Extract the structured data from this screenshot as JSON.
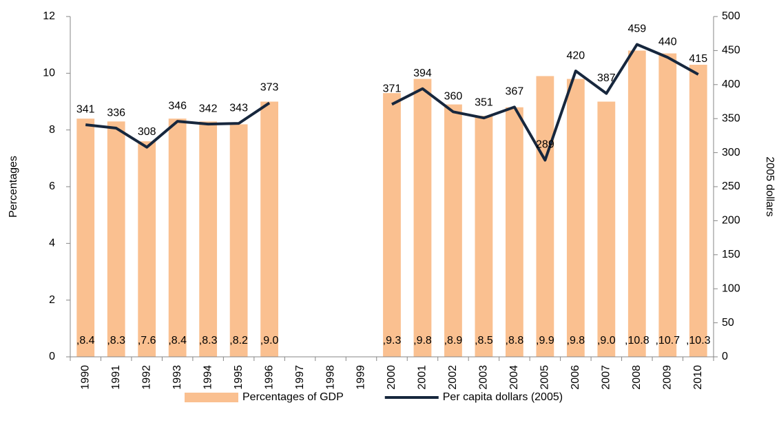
{
  "chart_data": {
    "type": "bar-line",
    "categories": [
      "1990",
      "1991",
      "1992",
      "1993",
      "1994",
      "1995",
      "1996",
      "1997",
      "1998",
      "1999",
      "2000",
      "2001",
      "2002",
      "2003",
      "2004",
      "2005",
      "2006",
      "2007",
      "2008",
      "2009",
      "2010"
    ],
    "series": [
      {
        "name": "Percentages of GDP",
        "type": "bar",
        "color": "#fac090",
        "values": [
          8.4,
          8.3,
          7.6,
          8.4,
          8.3,
          8.2,
          9.0,
          null,
          null,
          null,
          9.3,
          9.8,
          8.9,
          8.5,
          8.8,
          9.9,
          9.8,
          9.0,
          10.8,
          10.7,
          10.3
        ],
        "value_labels": [
          ",8.4",
          ",8.3",
          ",7.6",
          ",8.4",
          ",8.3",
          ",8.2",
          ",9.0",
          null,
          null,
          null,
          ",9.3",
          ",9.8",
          ",8.9",
          ",8.5",
          ",8.8",
          ",9.9",
          ",9.8",
          ",9.0",
          ",10.8",
          ",10.7",
          ",10.3"
        ]
      },
      {
        "name": "Per capita dollars (2005)",
        "type": "line",
        "axis": "y2",
        "color": "#17273d",
        "values": [
          341,
          336,
          308,
          346,
          342,
          343,
          373,
          null,
          null,
          null,
          371,
          394,
          360,
          351,
          367,
          289,
          420,
          387,
          459,
          440,
          415
        ]
      }
    ],
    "ylabel": "Percentages",
    "y2label": "2005 dollars",
    "ylim": [
      0,
      12
    ],
    "yticks": [
      0,
      2,
      4,
      6,
      8,
      10,
      12
    ],
    "y2lim": [
      0,
      500
    ],
    "y2ticks": [
      0,
      50,
      100,
      150,
      200,
      250,
      300,
      350,
      400,
      450,
      500
    ],
    "legend": "bottom"
  }
}
